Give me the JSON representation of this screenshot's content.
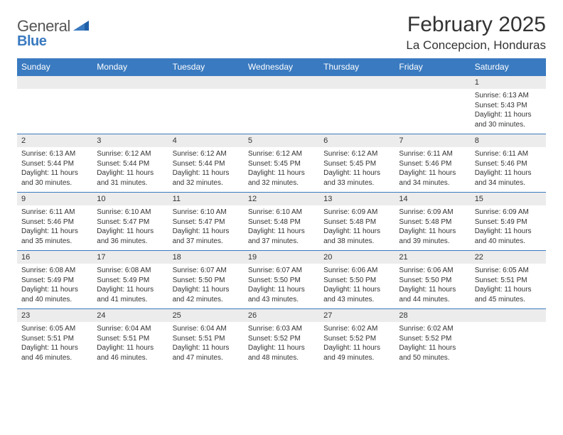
{
  "logo": {
    "word1": "General",
    "word2": "Blue"
  },
  "title": "February 2025",
  "location": "La Concepcion, Honduras",
  "colors": {
    "header_bg": "#3a7ac0",
    "header_text": "#ffffff",
    "daynum_bg": "#ececec",
    "row_border": "#3a7ac0",
    "body_text": "#333333",
    "page_bg": "#ffffff"
  },
  "fonts": {
    "title_size": 30,
    "location_size": 17,
    "dow_size": 12,
    "daynum_size": 11,
    "body_size": 10
  },
  "days_of_week": [
    "Sunday",
    "Monday",
    "Tuesday",
    "Wednesday",
    "Thursday",
    "Friday",
    "Saturday"
  ],
  "weeks": [
    [
      null,
      null,
      null,
      null,
      null,
      null,
      {
        "n": "1",
        "sunrise": "Sunrise: 6:13 AM",
        "sunset": "Sunset: 5:43 PM",
        "daylight": "Daylight: 11 hours and 30 minutes."
      }
    ],
    [
      {
        "n": "2",
        "sunrise": "Sunrise: 6:13 AM",
        "sunset": "Sunset: 5:44 PM",
        "daylight": "Daylight: 11 hours and 30 minutes."
      },
      {
        "n": "3",
        "sunrise": "Sunrise: 6:12 AM",
        "sunset": "Sunset: 5:44 PM",
        "daylight": "Daylight: 11 hours and 31 minutes."
      },
      {
        "n": "4",
        "sunrise": "Sunrise: 6:12 AM",
        "sunset": "Sunset: 5:44 PM",
        "daylight": "Daylight: 11 hours and 32 minutes."
      },
      {
        "n": "5",
        "sunrise": "Sunrise: 6:12 AM",
        "sunset": "Sunset: 5:45 PM",
        "daylight": "Daylight: 11 hours and 32 minutes."
      },
      {
        "n": "6",
        "sunrise": "Sunrise: 6:12 AM",
        "sunset": "Sunset: 5:45 PM",
        "daylight": "Daylight: 11 hours and 33 minutes."
      },
      {
        "n": "7",
        "sunrise": "Sunrise: 6:11 AM",
        "sunset": "Sunset: 5:46 PM",
        "daylight": "Daylight: 11 hours and 34 minutes."
      },
      {
        "n": "8",
        "sunrise": "Sunrise: 6:11 AM",
        "sunset": "Sunset: 5:46 PM",
        "daylight": "Daylight: 11 hours and 34 minutes."
      }
    ],
    [
      {
        "n": "9",
        "sunrise": "Sunrise: 6:11 AM",
        "sunset": "Sunset: 5:46 PM",
        "daylight": "Daylight: 11 hours and 35 minutes."
      },
      {
        "n": "10",
        "sunrise": "Sunrise: 6:10 AM",
        "sunset": "Sunset: 5:47 PM",
        "daylight": "Daylight: 11 hours and 36 minutes."
      },
      {
        "n": "11",
        "sunrise": "Sunrise: 6:10 AM",
        "sunset": "Sunset: 5:47 PM",
        "daylight": "Daylight: 11 hours and 37 minutes."
      },
      {
        "n": "12",
        "sunrise": "Sunrise: 6:10 AM",
        "sunset": "Sunset: 5:48 PM",
        "daylight": "Daylight: 11 hours and 37 minutes."
      },
      {
        "n": "13",
        "sunrise": "Sunrise: 6:09 AM",
        "sunset": "Sunset: 5:48 PM",
        "daylight": "Daylight: 11 hours and 38 minutes."
      },
      {
        "n": "14",
        "sunrise": "Sunrise: 6:09 AM",
        "sunset": "Sunset: 5:48 PM",
        "daylight": "Daylight: 11 hours and 39 minutes."
      },
      {
        "n": "15",
        "sunrise": "Sunrise: 6:09 AM",
        "sunset": "Sunset: 5:49 PM",
        "daylight": "Daylight: 11 hours and 40 minutes."
      }
    ],
    [
      {
        "n": "16",
        "sunrise": "Sunrise: 6:08 AM",
        "sunset": "Sunset: 5:49 PM",
        "daylight": "Daylight: 11 hours and 40 minutes."
      },
      {
        "n": "17",
        "sunrise": "Sunrise: 6:08 AM",
        "sunset": "Sunset: 5:49 PM",
        "daylight": "Daylight: 11 hours and 41 minutes."
      },
      {
        "n": "18",
        "sunrise": "Sunrise: 6:07 AM",
        "sunset": "Sunset: 5:50 PM",
        "daylight": "Daylight: 11 hours and 42 minutes."
      },
      {
        "n": "19",
        "sunrise": "Sunrise: 6:07 AM",
        "sunset": "Sunset: 5:50 PM",
        "daylight": "Daylight: 11 hours and 43 minutes."
      },
      {
        "n": "20",
        "sunrise": "Sunrise: 6:06 AM",
        "sunset": "Sunset: 5:50 PM",
        "daylight": "Daylight: 11 hours and 43 minutes."
      },
      {
        "n": "21",
        "sunrise": "Sunrise: 6:06 AM",
        "sunset": "Sunset: 5:50 PM",
        "daylight": "Daylight: 11 hours and 44 minutes."
      },
      {
        "n": "22",
        "sunrise": "Sunrise: 6:05 AM",
        "sunset": "Sunset: 5:51 PM",
        "daylight": "Daylight: 11 hours and 45 minutes."
      }
    ],
    [
      {
        "n": "23",
        "sunrise": "Sunrise: 6:05 AM",
        "sunset": "Sunset: 5:51 PM",
        "daylight": "Daylight: 11 hours and 46 minutes."
      },
      {
        "n": "24",
        "sunrise": "Sunrise: 6:04 AM",
        "sunset": "Sunset: 5:51 PM",
        "daylight": "Daylight: 11 hours and 46 minutes."
      },
      {
        "n": "25",
        "sunrise": "Sunrise: 6:04 AM",
        "sunset": "Sunset: 5:51 PM",
        "daylight": "Daylight: 11 hours and 47 minutes."
      },
      {
        "n": "26",
        "sunrise": "Sunrise: 6:03 AM",
        "sunset": "Sunset: 5:52 PM",
        "daylight": "Daylight: 11 hours and 48 minutes."
      },
      {
        "n": "27",
        "sunrise": "Sunrise: 6:02 AM",
        "sunset": "Sunset: 5:52 PM",
        "daylight": "Daylight: 11 hours and 49 minutes."
      },
      {
        "n": "28",
        "sunrise": "Sunrise: 6:02 AM",
        "sunset": "Sunset: 5:52 PM",
        "daylight": "Daylight: 11 hours and 50 minutes."
      },
      null
    ]
  ]
}
